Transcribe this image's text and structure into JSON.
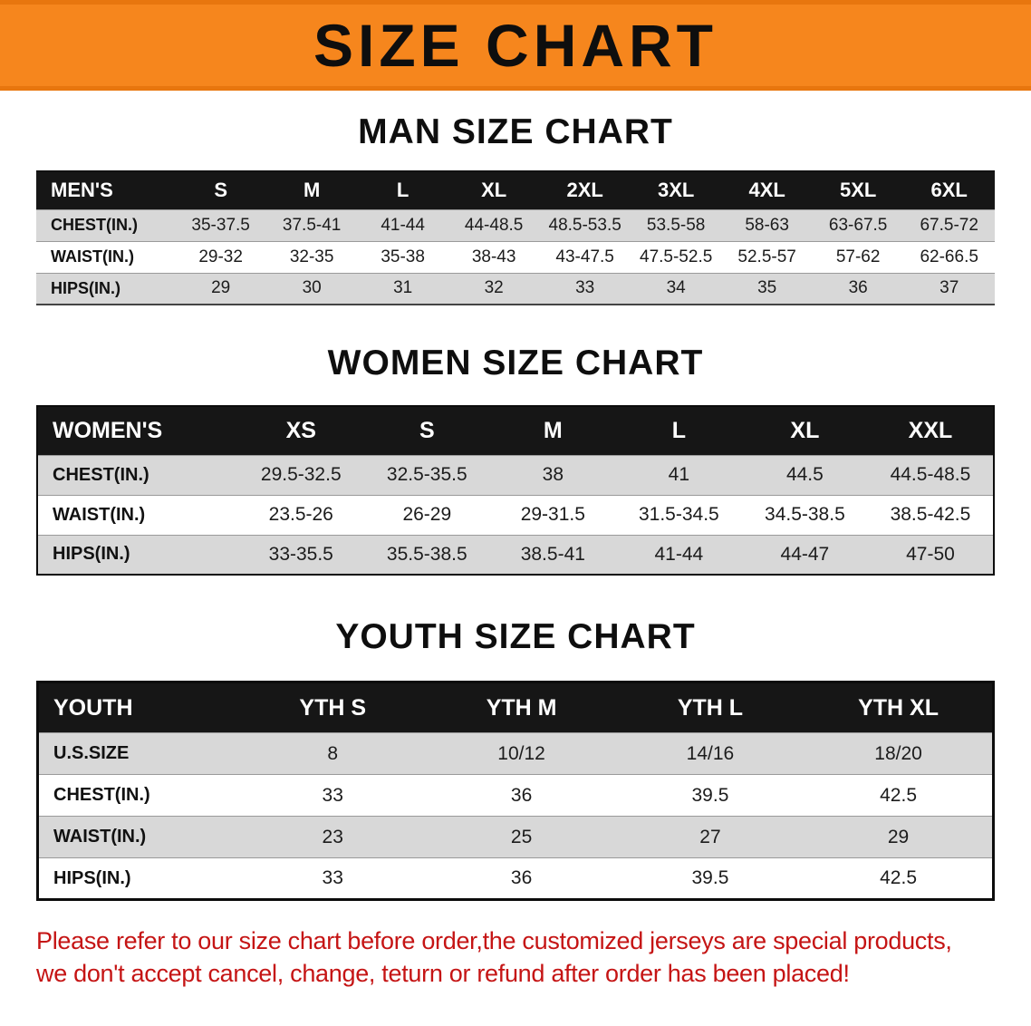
{
  "banner": {
    "title": "SIZE CHART"
  },
  "sections": [
    {
      "title": "MAN SIZE CHART",
      "header": [
        "MEN'S",
        "S",
        "M",
        "L",
        "XL",
        "2XL",
        "3XL",
        "4XL",
        "5XL",
        "6XL"
      ],
      "rows": [
        [
          "CHEST(IN.)",
          "35-37.5",
          "37.5-41",
          "41-44",
          "44-48.5",
          "48.5-53.5",
          "53.5-58",
          "58-63",
          "63-67.5",
          "67.5-72"
        ],
        [
          "WAIST(IN.)",
          "29-32",
          "32-35",
          "35-38",
          "38-43",
          "43-47.5",
          "47.5-52.5",
          "52.5-57",
          "57-62",
          "62-66.5"
        ],
        [
          "HIPS(IN.)",
          "29",
          "30",
          "31",
          "32",
          "33",
          "34",
          "35",
          "36",
          "37"
        ]
      ]
    },
    {
      "title": "WOMEN SIZE CHART",
      "header": [
        "WOMEN'S",
        "XS",
        "S",
        "M",
        "L",
        "XL",
        "XXL"
      ],
      "rows": [
        [
          "CHEST(IN.)",
          "29.5-32.5",
          "32.5-35.5",
          "38",
          "41",
          "44.5",
          "44.5-48.5"
        ],
        [
          "WAIST(IN.)",
          "23.5-26",
          "26-29",
          "29-31.5",
          "31.5-34.5",
          "34.5-38.5",
          "38.5-42.5"
        ],
        [
          "HIPS(IN.)",
          "33-35.5",
          "35.5-38.5",
          "38.5-41",
          "41-44",
          "44-47",
          "47-50"
        ]
      ]
    },
    {
      "title": "YOUTH SIZE CHART",
      "header": [
        "YOUTH",
        "YTH S",
        "YTH M",
        "YTH L",
        "YTH XL"
      ],
      "rows": [
        [
          "U.S.SIZE",
          "8",
          "10/12",
          "14/16",
          "18/20"
        ],
        [
          "CHEST(IN.)",
          "33",
          "36",
          "39.5",
          "42.5"
        ],
        [
          "WAIST(IN.)",
          "23",
          "25",
          "27",
          "29"
        ],
        [
          "HIPS(IN.)",
          "33",
          "36",
          "39.5",
          "42.5"
        ]
      ]
    }
  ],
  "note": {
    "line1": "Please refer to our size chart before order,the customized jerseys are special products,",
    "line2": "we don't accept cancel, change, teturn or refund after order has been placed!"
  },
  "colors": {
    "banner-bg": "#f6861d",
    "banner-edge": "#e8760e",
    "header-bg": "#161616",
    "header-text": "#ffffff",
    "stripe": "#d8d8d8",
    "text": "#1c1c1c",
    "note-red": "#c51414"
  }
}
